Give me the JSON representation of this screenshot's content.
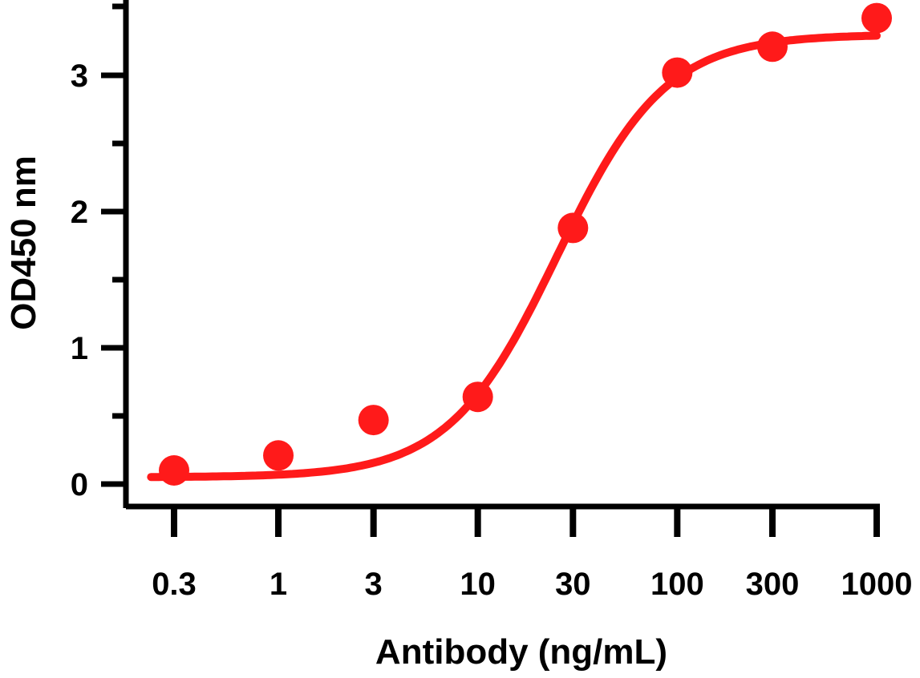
{
  "chart_data": {
    "type": "scatter",
    "title": "",
    "xlabel": "Antibody (ng/mL)",
    "ylabel": "OD450 nm",
    "xscale": "log",
    "xlim": [
      0.3,
      1000
    ],
    "ylim": [
      0,
      3.4
    ],
    "xticks": [
      0.3,
      1,
      3,
      10,
      30,
      100,
      300,
      1000
    ],
    "xtick_labels": [
      "0.3",
      "1",
      "3",
      "10",
      "30",
      "100",
      "300",
      "1000"
    ],
    "yticks": [
      0,
      1,
      2,
      3
    ],
    "ytick_labels": [
      "0",
      "1",
      "2",
      "3"
    ],
    "grid": false,
    "legend": "none",
    "color": "#ff1a1a",
    "series": [
      {
        "points": [
          {
            "x": 0.3,
            "y": 0.1
          },
          {
            "x": 1,
            "y": 0.21
          },
          {
            "x": 3,
            "y": 0.47
          },
          {
            "x": 10,
            "y": 0.64
          },
          {
            "x": 30,
            "y": 1.88
          },
          {
            "x": 100,
            "y": 3.02
          },
          {
            "x": 300,
            "y": 3.21
          },
          {
            "x": 1000,
            "y": 3.42
          }
        ],
        "fit": {
          "model": "4PL",
          "bottom": 0.05,
          "top": 3.3,
          "ec50": 25,
          "hill": 1.6
        }
      }
    ]
  }
}
